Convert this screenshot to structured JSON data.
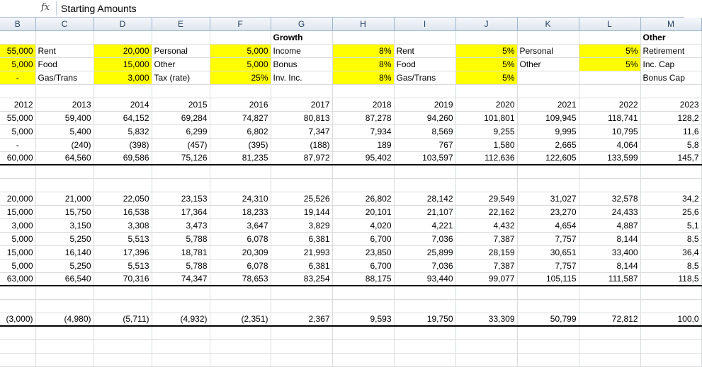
{
  "formula_bar": {
    "content": "Starting Amounts"
  },
  "columns": [
    "B",
    "C",
    "D",
    "E",
    "F",
    "G",
    "H",
    "I",
    "J",
    "K",
    "L",
    "M"
  ],
  "rows": [
    [
      "",
      "",
      "",
      "",
      "",
      "Growth",
      "",
      "",
      "",
      "",
      "",
      "Other"
    ],
    [
      "55,000",
      "Rent",
      "20,000",
      "Personal",
      "5,000",
      "Income",
      "8%",
      "Rent",
      "5%",
      "Personal",
      "5%",
      "Retirement"
    ],
    [
      "5,000",
      "Food",
      "15,000",
      "Other",
      "5,000",
      "Bonus",
      "8%",
      "Food",
      "5%",
      "Other",
      "5%",
      "Inc. Cap"
    ],
    [
      "-",
      "Gas/Trans",
      "3,000",
      "Tax (rate)",
      "25%",
      "Inv. Inc.",
      "8%",
      "Gas/Trans",
      "5%",
      "",
      "",
      "Bonus Cap"
    ],
    [
      "",
      "",
      "",
      "",
      "",
      "",
      "",
      "",
      "",
      "",
      "",
      ""
    ],
    [
      "2012",
      "2013",
      "2014",
      "2015",
      "2016",
      "2017",
      "2018",
      "2019",
      "2020",
      "2021",
      "2022",
      "2023"
    ],
    [
      "55,000",
      "59,400",
      "64,152",
      "69,284",
      "74,827",
      "80,813",
      "87,278",
      "94,260",
      "101,801",
      "109,945",
      "118,741",
      "128,2"
    ],
    [
      "5,000",
      "5,400",
      "5,832",
      "6,299",
      "6,802",
      "7,347",
      "7,934",
      "8,569",
      "9,255",
      "9,995",
      "10,795",
      "11,6"
    ],
    [
      "-",
      "(240)",
      "(398)",
      "(457)",
      "(395)",
      "(188)",
      "189",
      "767",
      "1,580",
      "2,665",
      "4,064",
      "5,8"
    ],
    [
      "60,000",
      "64,560",
      "69,586",
      "75,126",
      "81,235",
      "87,972",
      "95,402",
      "103,597",
      "112,636",
      "122,605",
      "133,599",
      "145,7"
    ],
    [
      "",
      "",
      "",
      "",
      "",
      "",
      "",
      "",
      "",
      "",
      "",
      ""
    ],
    [
      "",
      "",
      "",
      "",
      "",
      "",
      "",
      "",
      "",
      "",
      "",
      ""
    ],
    [
      "20,000",
      "21,000",
      "22,050",
      "23,153",
      "24,310",
      "25,526",
      "26,802",
      "28,142",
      "29,549",
      "31,027",
      "32,578",
      "34,2"
    ],
    [
      "15,000",
      "15,750",
      "16,538",
      "17,364",
      "18,233",
      "19,144",
      "20,101",
      "21,107",
      "22,162",
      "23,270",
      "24,433",
      "25,6"
    ],
    [
      "3,000",
      "3,150",
      "3,308",
      "3,473",
      "3,647",
      "3,829",
      "4,020",
      "4,221",
      "4,432",
      "4,654",
      "4,887",
      "5,1"
    ],
    [
      "5,000",
      "5,250",
      "5,513",
      "5,788",
      "6,078",
      "6,381",
      "6,700",
      "7,036",
      "7,387",
      "7,757",
      "8,144",
      "8,5"
    ],
    [
      "15,000",
      "16,140",
      "17,396",
      "18,781",
      "20,309",
      "21,993",
      "23,850",
      "25,899",
      "28,159",
      "30,651",
      "33,400",
      "36,4"
    ],
    [
      "5,000",
      "5,250",
      "5,513",
      "5,788",
      "6,078",
      "6,381",
      "6,700",
      "7,036",
      "7,387",
      "7,757",
      "8,144",
      "8,5"
    ],
    [
      "63,000",
      "66,540",
      "70,316",
      "74,347",
      "78,653",
      "83,254",
      "88,175",
      "93,440",
      "99,077",
      "105,115",
      "111,587",
      "118,5"
    ],
    [
      "",
      "",
      "",
      "",
      "",
      "",
      "",
      "",
      "",
      "",
      "",
      ""
    ],
    [
      "",
      "",
      "",
      "",
      "",
      "",
      "",
      "",
      "",
      "",
      "",
      ""
    ],
    [
      "(3,000)",
      "(4,980)",
      "(5,711)",
      "(4,932)",
      "(2,351)",
      "2,367",
      "9,593",
      "19,750",
      "33,309",
      "50,799",
      "72,812",
      "100,0"
    ],
    [
      "",
      "",
      "",
      "",
      "",
      "",
      "",
      "",
      "",
      "",
      "",
      ""
    ],
    [
      "",
      "",
      "",
      "",
      "",
      "",
      "",
      "",
      "",
      "",
      "",
      ""
    ],
    [
      "",
      "",
      "",
      "",
      "",
      "",
      "",
      "",
      "",
      "",
      "",
      ""
    ]
  ],
  "colors": {
    "highlight": "#ffff00",
    "header_text": "#27415f",
    "gridline": "#dadcdd"
  }
}
